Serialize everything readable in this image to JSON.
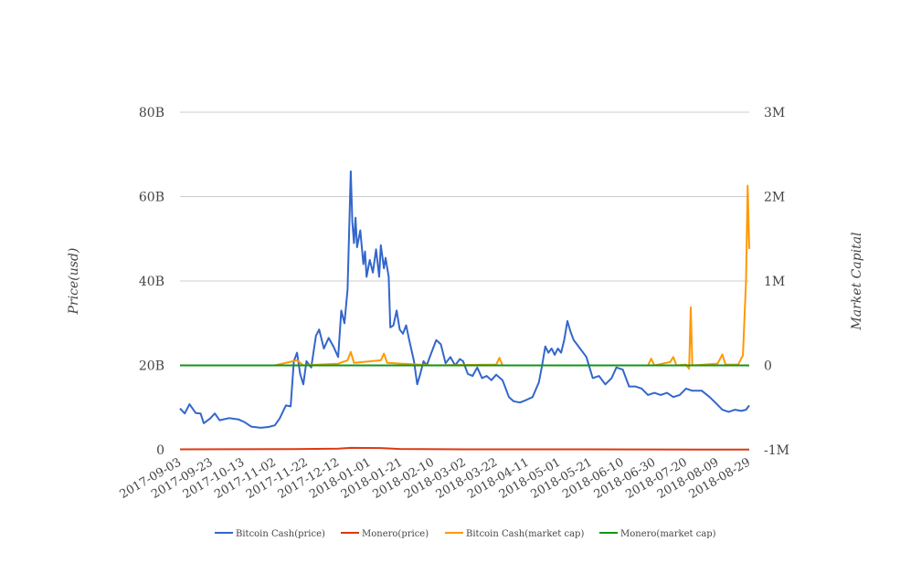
{
  "chart_data": {
    "type": "line",
    "title": "",
    "xlabel": "",
    "ylabel": "Price(usd)",
    "y2label": "Market Capital",
    "grid": true,
    "legend_position": "bottom",
    "ylim": [
      0,
      80000000000
    ],
    "y2lim": [
      -1000000,
      3000000
    ],
    "y_ticks": [
      "0",
      "20B",
      "40B",
      "60B",
      "80B"
    ],
    "y2_ticks": [
      "-1M",
      "0",
      "1M",
      "2M",
      "3M"
    ],
    "x_ticks": [
      "2017-09-03",
      "2017-09-23",
      "2017-10-13",
      "2017-11-02",
      "2017-11-22",
      "2017-12-12",
      "2018-01-01",
      "2018-01-21",
      "2018-02-10",
      "2018-03-02",
      "2018-03-22",
      "2018-04-11",
      "2018-05-01",
      "2018-05-21",
      "2018-06-10",
      "2018-06-30",
      "2018-07-20",
      "2018-08-09",
      "2018-08-29"
    ],
    "x_start": "2017-09-03",
    "x_end": "2018-08-29",
    "series": [
      {
        "name": "Bitcoin Cash(price)",
        "axis": "left",
        "color": "#3366cc",
        "points": [
          [
            "2017-09-03",
            9800000000
          ],
          [
            "2017-09-06",
            8600000000
          ],
          [
            "2017-09-09",
            10800000000
          ],
          [
            "2017-09-13",
            8700000000
          ],
          [
            "2017-09-16",
            8600000000
          ],
          [
            "2017-09-18",
            6300000000
          ],
          [
            "2017-09-22",
            7400000000
          ],
          [
            "2017-09-25",
            8600000000
          ],
          [
            "2017-09-28",
            7000000000
          ],
          [
            "2017-10-04",
            7500000000
          ],
          [
            "2017-10-10",
            7200000000
          ],
          [
            "2017-10-14",
            6500000000
          ],
          [
            "2017-10-18",
            5500000000
          ],
          [
            "2017-10-24",
            5200000000
          ],
          [
            "2017-10-29",
            5400000000
          ],
          [
            "2017-11-02",
            5800000000
          ],
          [
            "2017-11-05",
            7400000000
          ],
          [
            "2017-11-09",
            10500000000
          ],
          [
            "2017-11-12",
            10300000000
          ],
          [
            "2017-11-14",
            21000000000
          ],
          [
            "2017-11-16",
            23000000000
          ],
          [
            "2017-11-18",
            18000000000
          ],
          [
            "2017-11-20",
            15500000000
          ],
          [
            "2017-11-22",
            21000000000
          ],
          [
            "2017-11-25",
            19500000000
          ],
          [
            "2017-11-28",
            27000000000
          ],
          [
            "2017-11-30",
            28500000000
          ],
          [
            "2017-12-03",
            24000000000
          ],
          [
            "2017-12-06",
            26500000000
          ],
          [
            "2017-12-09",
            24500000000
          ],
          [
            "2017-12-12",
            22000000000
          ],
          [
            "2017-12-14",
            33000000000
          ],
          [
            "2017-12-16",
            30000000000
          ],
          [
            "2017-12-18",
            38000000000
          ],
          [
            "2017-12-20",
            66000000000
          ],
          [
            "2017-12-21",
            54000000000
          ],
          [
            "2017-12-22",
            49000000000
          ],
          [
            "2017-12-23",
            55000000000
          ],
          [
            "2017-12-24",
            48000000000
          ],
          [
            "2017-12-26",
            52000000000
          ],
          [
            "2017-12-28",
            44000000000
          ],
          [
            "2017-12-29",
            47000000000
          ],
          [
            "2017-12-30",
            41000000000
          ],
          [
            "2018-01-01",
            45000000000
          ],
          [
            "2018-01-03",
            42000000000
          ],
          [
            "2018-01-05",
            47500000000
          ],
          [
            "2018-01-07",
            41000000000
          ],
          [
            "2018-01-08",
            48500000000
          ],
          [
            "2018-01-10",
            43000000000
          ],
          [
            "2018-01-11",
            45500000000
          ],
          [
            "2018-01-13",
            41000000000
          ],
          [
            "2018-01-14",
            29000000000
          ],
          [
            "2018-01-16",
            29500000000
          ],
          [
            "2018-01-18",
            33000000000
          ],
          [
            "2018-01-20",
            28500000000
          ],
          [
            "2018-01-22",
            27500000000
          ],
          [
            "2018-01-24",
            29500000000
          ],
          [
            "2018-01-26",
            26000000000
          ],
          [
            "2018-01-29",
            21000000000
          ],
          [
            "2018-01-31",
            15500000000
          ],
          [
            "2018-02-02",
            18000000000
          ],
          [
            "2018-02-04",
            21000000000
          ],
          [
            "2018-02-06",
            20000000000
          ],
          [
            "2018-02-08",
            22000000000
          ],
          [
            "2018-02-10",
            24000000000
          ],
          [
            "2018-02-12",
            26000000000
          ],
          [
            "2018-02-15",
            25000000000
          ],
          [
            "2018-02-18",
            20500000000
          ],
          [
            "2018-02-21",
            22000000000
          ],
          [
            "2018-02-24",
            20000000000
          ],
          [
            "2018-02-27",
            21500000000
          ],
          [
            "2018-03-01",
            21000000000
          ],
          [
            "2018-03-04",
            18000000000
          ],
          [
            "2018-03-07",
            17500000000
          ],
          [
            "2018-03-10",
            19500000000
          ],
          [
            "2018-03-13",
            17000000000
          ],
          [
            "2018-03-16",
            17500000000
          ],
          [
            "2018-03-19",
            16500000000
          ],
          [
            "2018-03-22",
            17800000000
          ],
          [
            "2018-03-26",
            16500000000
          ],
          [
            "2018-03-30",
            12500000000
          ],
          [
            "2018-04-02",
            11500000000
          ],
          [
            "2018-04-06",
            11200000000
          ],
          [
            "2018-04-10",
            11800000000
          ],
          [
            "2018-04-14",
            12500000000
          ],
          [
            "2018-04-18",
            16000000000
          ],
          [
            "2018-04-20",
            20000000000
          ],
          [
            "2018-04-22",
            24500000000
          ],
          [
            "2018-04-24",
            23000000000
          ],
          [
            "2018-04-26",
            24000000000
          ],
          [
            "2018-04-28",
            22500000000
          ],
          [
            "2018-04-30",
            24000000000
          ],
          [
            "2018-05-02",
            23000000000
          ],
          [
            "2018-05-04",
            26000000000
          ],
          [
            "2018-05-06",
            30500000000
          ],
          [
            "2018-05-08",
            28000000000
          ],
          [
            "2018-05-10",
            26000000000
          ],
          [
            "2018-05-12",
            25000000000
          ],
          [
            "2018-05-14",
            24000000000
          ],
          [
            "2018-05-18",
            22000000000
          ],
          [
            "2018-05-22",
            17000000000
          ],
          [
            "2018-05-26",
            17500000000
          ],
          [
            "2018-05-30",
            15500000000
          ],
          [
            "2018-06-03",
            17000000000
          ],
          [
            "2018-06-06",
            19500000000
          ],
          [
            "2018-06-10",
            19000000000
          ],
          [
            "2018-06-14",
            15000000000
          ],
          [
            "2018-06-18",
            15000000000
          ],
          [
            "2018-06-22",
            14500000000
          ],
          [
            "2018-06-26",
            13000000000
          ],
          [
            "2018-06-30",
            13500000000
          ],
          [
            "2018-07-04",
            13000000000
          ],
          [
            "2018-07-08",
            13500000000
          ],
          [
            "2018-07-12",
            12500000000
          ],
          [
            "2018-07-16",
            13000000000
          ],
          [
            "2018-07-20",
            14500000000
          ],
          [
            "2018-07-24",
            14000000000
          ],
          [
            "2018-07-30",
            14000000000
          ],
          [
            "2018-08-04",
            12500000000
          ],
          [
            "2018-08-08",
            11000000000
          ],
          [
            "2018-08-12",
            9500000000
          ],
          [
            "2018-08-16",
            9000000000
          ],
          [
            "2018-08-20",
            9500000000
          ],
          [
            "2018-08-24",
            9200000000
          ],
          [
            "2018-08-27",
            9500000000
          ],
          [
            "2018-08-29",
            10500000000
          ]
        ]
      },
      {
        "name": "Monero(price)",
        "axis": "left",
        "color": "#dc3912",
        "points": [
          [
            "2017-09-03",
            100000000
          ],
          [
            "2017-11-14",
            150000000
          ],
          [
            "2017-12-12",
            250000000
          ],
          [
            "2017-12-20",
            450000000
          ],
          [
            "2018-01-08",
            400000000
          ],
          [
            "2018-01-20",
            200000000
          ],
          [
            "2018-03-01",
            100000000
          ],
          [
            "2018-05-05",
            100000000
          ],
          [
            "2018-08-29",
            50000000
          ]
        ]
      },
      {
        "name": "Bitcoin Cash(market cap)",
        "axis": "right",
        "color": "#ff9900",
        "points": [
          [
            "2017-09-03",
            0
          ],
          [
            "2017-11-02",
            0
          ],
          [
            "2017-11-16",
            60000
          ],
          [
            "2017-11-20",
            0
          ],
          [
            "2017-12-12",
            20000
          ],
          [
            "2017-12-18",
            60000
          ],
          [
            "2017-12-20",
            160000
          ],
          [
            "2017-12-22",
            30000
          ],
          [
            "2018-01-08",
            60000
          ],
          [
            "2018-01-10",
            140000
          ],
          [
            "2018-01-12",
            30000
          ],
          [
            "2018-02-10",
            0
          ],
          [
            "2018-03-22",
            10000
          ],
          [
            "2018-03-24",
            90000
          ],
          [
            "2018-03-26",
            0
          ],
          [
            "2018-06-26",
            0
          ],
          [
            "2018-06-28",
            80000
          ],
          [
            "2018-06-30",
            0
          ],
          [
            "2018-07-10",
            40000
          ],
          [
            "2018-07-12",
            100000
          ],
          [
            "2018-07-14",
            0
          ],
          [
            "2018-07-20",
            10000
          ],
          [
            "2018-07-22",
            -40000
          ],
          [
            "2018-07-23",
            690000
          ],
          [
            "2018-07-24",
            0
          ],
          [
            "2018-08-09",
            20000
          ],
          [
            "2018-08-12",
            130000
          ],
          [
            "2018-08-14",
            10000
          ],
          [
            "2018-08-22",
            10000
          ],
          [
            "2018-08-25",
            120000
          ],
          [
            "2018-08-27",
            1000000
          ],
          [
            "2018-08-28",
            2130000
          ],
          [
            "2018-08-29",
            1380000
          ]
        ]
      },
      {
        "name": "Monero(market cap)",
        "axis": "right",
        "color": "#109618",
        "points": [
          [
            "2017-09-03",
            0
          ],
          [
            "2018-08-29",
            0
          ]
        ]
      }
    ]
  }
}
